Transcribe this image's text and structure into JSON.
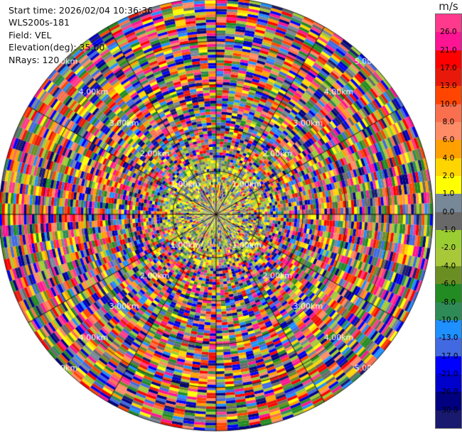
{
  "info": {
    "start_time": "Start time: 2026/02/04 10:36:36",
    "instrument": "WLS200s-181",
    "field": "Field: VEL",
    "elevation": "Elevation(deg): 35.00",
    "nrays": "NRays: 120"
  },
  "range_labels": [
    "1.00km",
    "2.00km",
    "3.00km",
    "4.00km",
    "5.00km"
  ],
  "colorbar": {
    "unit": "m/s",
    "levels": [
      {
        "label": "26.0",
        "color": "#ff3a8c"
      },
      {
        "label": "21.0",
        "color": "#ff1493"
      },
      {
        "label": "17.0",
        "color": "#ff0000"
      },
      {
        "label": "13.0",
        "color": "#e8190a"
      },
      {
        "label": "10.0",
        "color": "#ff4500"
      },
      {
        "label": "8.0",
        "color": "#fa6f4e"
      },
      {
        "label": "6.0",
        "color": "#ff8c66"
      },
      {
        "label": "4.0",
        "color": "#ff9f00"
      },
      {
        "label": "2.0",
        "color": "#ffd500"
      },
      {
        "label": "1.0",
        "color": "#ffff00"
      },
      {
        "label": "0.0",
        "color": "#778899"
      },
      {
        "label": "-1.0",
        "color": "#696969"
      },
      {
        "label": "-2.0",
        "color": "#9acd32"
      },
      {
        "label": "-4.0",
        "color": "#a8c83a"
      },
      {
        "label": "-6.0",
        "color": "#6b8e23"
      },
      {
        "label": "-8.0",
        "color": "#228b22"
      },
      {
        "label": "-10.0",
        "color": "#2e8b57"
      },
      {
        "label": "-13.0",
        "color": "#1e90ff"
      },
      {
        "label": "-17.0",
        "color": "#4169e1"
      },
      {
        "label": "-21.0",
        "color": "#0000ff"
      },
      {
        "label": "-26.0",
        "color": "#0000cd"
      },
      {
        "label": "-30.0",
        "color": "#000080"
      },
      {
        "label": "",
        "color": "#191970"
      }
    ]
  }
}
